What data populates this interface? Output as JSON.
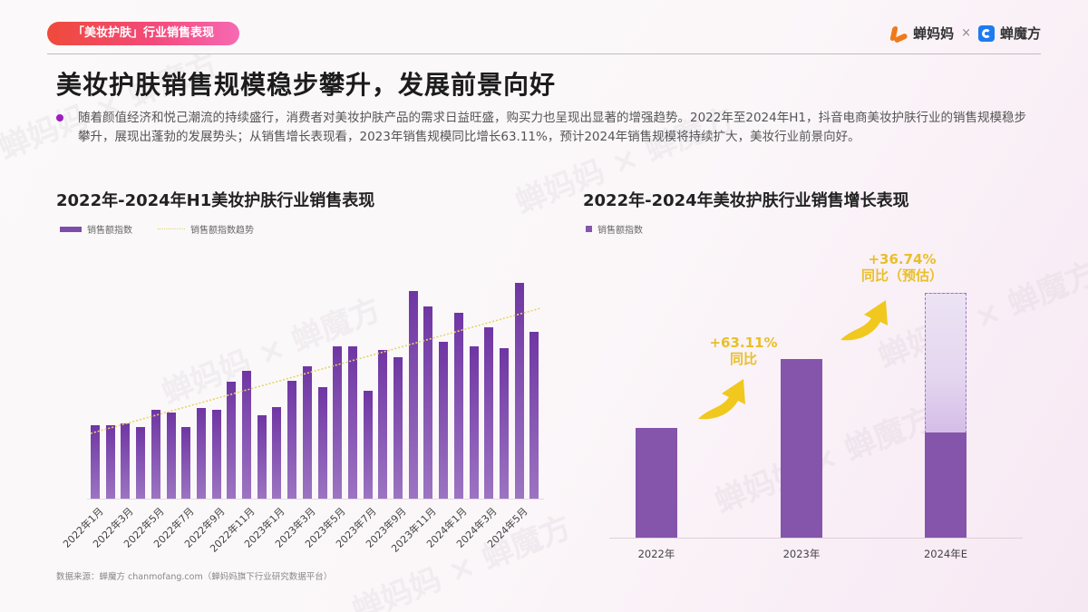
{
  "header": {
    "tag": "「美妆护肤」行业销售表现",
    "logo_left": "蝉妈妈",
    "logo_sep": "×",
    "logo_right": "蝉魔方"
  },
  "headline": "美妆护肤销售规模稳步攀升，发展前景向好",
  "bullet": "随着颜值经济和悦己潮流的持续盛行，消费者对美妆护肤产品的需求日益旺盛，购买力也呈现出显著的增强趋势。2022年至2024年H1，抖音电商美妆护肤行业的销售规模稳步攀升，展现出蓬勃的发展势头；从销售增长表现看，2023年销售规模同比增长63.11%，预计2024年销售规模将持续扩大，美妆行业前景向好。",
  "source": "数据来源：蝉魔方 chanmofang.com（蝉妈妈旗下行业研究数据平台）",
  "colors": {
    "bar": "#7d4cac",
    "trend": "#e4d56a",
    "growth": "#e9bf2a",
    "tag_start": "#ef4a3a",
    "tag_end": "#f769b3"
  },
  "chart_data": [
    {
      "type": "bar",
      "title": "2022年-2024年H1美妆护肤行业销售表现",
      "legend": [
        "销售额指数",
        "销售额指数趋势"
      ],
      "xlabel": "",
      "ylabel": "",
      "grid": false,
      "axis_visible": false,
      "tick_labels": [
        "2022年1月",
        "2022年3月",
        "2022年5月",
        "2022年7月",
        "2022年9月",
        "2022年11月",
        "2023年1月",
        "2023年3月",
        "2023年5月",
        "2023年7月",
        "2023年9月",
        "2023年11月",
        "2024年1月",
        "2024年3月",
        "2024年5月"
      ],
      "categories": [
        "2022-01",
        "2022-02",
        "2022-03",
        "2022-04",
        "2022-05",
        "2022-06",
        "2022-07",
        "2022-08",
        "2022-09",
        "2022-10",
        "2022-11",
        "2022-12",
        "2023-01",
        "2023-02",
        "2023-03",
        "2023-04",
        "2023-05",
        "2023-06",
        "2023-07",
        "2023-08",
        "2023-09",
        "2023-10",
        "2023-11",
        "2023-12",
        "2024-01",
        "2024-02",
        "2024-03",
        "2024-04",
        "2024-05",
        "2024-06"
      ],
      "series": [
        {
          "name": "销售额指数",
          "values": [
            81,
            81,
            83,
            79,
            98,
            95,
            79,
            100,
            98,
            129,
            141,
            92,
            101,
            130,
            146,
            123,
            168,
            168,
            119,
            164,
            156,
            229,
            212,
            173,
            205,
            168,
            189,
            166,
            238,
            184
          ]
        },
        {
          "name": "销售额指数趋势",
          "type": "line",
          "style": "dotted",
          "values_linear": {
            "start": 72,
            "end": 210
          }
        }
      ],
      "note": "relative index values estimated from pixel heights; no y-axis shown"
    },
    {
      "type": "bar",
      "title": "2022年-2024年美妆护肤行业销售增长表现",
      "legend": [
        "销售额指数"
      ],
      "categories": [
        "2022年",
        "2023年",
        "2024年E"
      ],
      "values": [
        121,
        197,
        270
      ],
      "h1_actual_2024": 116,
      "annotations": [
        {
          "text": "+63.11%",
          "sub": "同比",
          "between": [
            "2022年",
            "2023年"
          ]
        },
        {
          "text": "+36.74%",
          "sub": "同比（预估）",
          "between": [
            "2023年",
            "2024年E"
          ]
        }
      ],
      "grid": false
    }
  ],
  "left_chart": {
    "title": "2022年-2024年H1美妆护肤行业销售表现",
    "legend_bar": "销售额指数",
    "legend_trend": "销售额指数趋势",
    "xlabels": [
      "2022年1月",
      "2022年3月",
      "2022年5月",
      "2022年7月",
      "2022年9月",
      "2022年11月",
      "2023年1月",
      "2023年3月",
      "2023年5月",
      "2023年7月",
      "2023年9月",
      "2023年11月",
      "2024年1月",
      "2024年3月",
      "2024年5月"
    ]
  },
  "right_chart": {
    "title": "2022年-2024年美妆护肤行业销售增长表现",
    "legend_bar": "销售额指数",
    "xlabels": [
      "2022年",
      "2023年",
      "2024年E"
    ],
    "growth1_pct": "+63.11%",
    "growth1_sub": "同比",
    "growth2_pct": "+36.74%",
    "growth2_sub": "同比（预估）"
  }
}
